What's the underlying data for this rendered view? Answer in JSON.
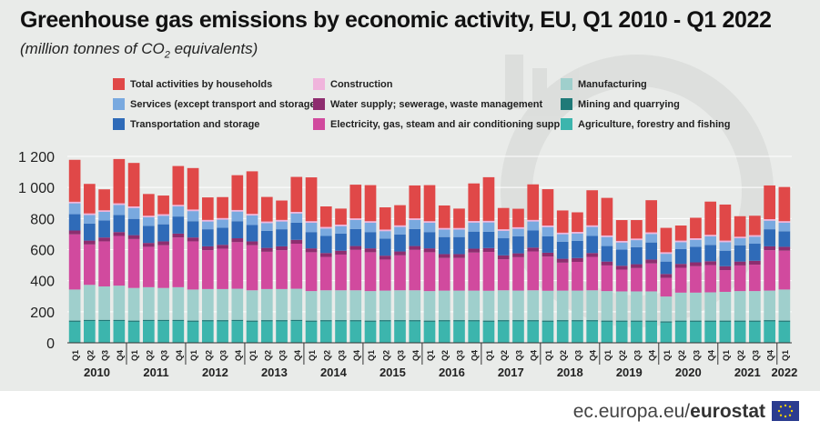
{
  "title": "Greenhouse gas emissions by economic activity, EU, Q1 2010 -  Q1 2022",
  "subtitle_pre": "(million tonnes of CO",
  "subtitle_sub": "2",
  "subtitle_post": " equivalents)",
  "footer": {
    "site": "ec.europa.eu/",
    "brand": "eurostat"
  },
  "chart_data": {
    "type": "bar",
    "stacked": true,
    "ylim": [
      0,
      1200
    ],
    "yticks": [
      "0",
      "200",
      "400",
      "600",
      "800",
      "1 000",
      "1 200"
    ],
    "grid": true,
    "legend_placement": "top",
    "quarter_labels": [
      "Q1",
      "Q2",
      "Q3",
      "Q4"
    ],
    "year_labels": [
      "2010",
      "2011",
      "2012",
      "2013",
      "2014",
      "2015",
      "2016",
      "2017",
      "2018",
      "2019",
      "2020",
      "2021",
      "2022"
    ],
    "series": [
      {
        "name": "Agriculture, forestry and fishing",
        "color": "#3cb5ad",
        "values": [
          135,
          140,
          140,
          140,
          135,
          140,
          140,
          140,
          135,
          138,
          138,
          140,
          135,
          138,
          138,
          140,
          135,
          138,
          138,
          138,
          135,
          138,
          138,
          138,
          135,
          138,
          138,
          138,
          135,
          138,
          138,
          138,
          135,
          138,
          138,
          138,
          135,
          135,
          135,
          135,
          130,
          135,
          135,
          135,
          135,
          135,
          135,
          138,
          135
        ]
      },
      {
        "name": "Mining and quarrying",
        "color": "#1f7a78",
        "values": [
          8,
          8,
          8,
          8,
          8,
          8,
          8,
          8,
          8,
          8,
          8,
          8,
          8,
          8,
          8,
          8,
          8,
          8,
          8,
          8,
          8,
          8,
          8,
          8,
          8,
          8,
          8,
          8,
          8,
          8,
          8,
          8,
          8,
          8,
          8,
          8,
          8,
          8,
          8,
          8,
          8,
          8,
          8,
          8,
          8,
          8,
          8,
          8,
          8
        ]
      },
      {
        "name": "Manufacturing",
        "color": "#9fcfcc",
        "values": [
          200,
          225,
          215,
          220,
          210,
          210,
          205,
          210,
          200,
          200,
          200,
          200,
          195,
          200,
          200,
          200,
          190,
          192,
          192,
          192,
          190,
          190,
          192,
          192,
          190,
          190,
          190,
          190,
          192,
          192,
          190,
          192,
          192,
          190,
          190,
          192,
          190,
          188,
          188,
          188,
          160,
          180,
          180,
          182,
          185,
          190,
          190,
          190,
          200
        ]
      },
      {
        "name": "Electricity, gas, steam and air conditioning supply",
        "color": "#d14a9e",
        "values": [
          355,
          260,
          290,
          320,
          315,
          260,
          275,
          320,
          310,
          250,
          260,
          300,
          290,
          240,
          250,
          290,
          250,
          215,
          230,
          260,
          250,
          200,
          225,
          260,
          250,
          210,
          210,
          245,
          250,
          200,
          215,
          250,
          220,
          180,
          185,
          215,
          165,
          140,
          150,
          180,
          120,
          160,
          170,
          175,
          140,
          165,
          170,
          260,
          250
        ]
      },
      {
        "name": "Water supply; sewerage, waste management",
        "color": "#8e2d6f",
        "values": [
          25,
          25,
          25,
          25,
          25,
          25,
          25,
          25,
          25,
          25,
          25,
          25,
          25,
          25,
          25,
          25,
          25,
          25,
          25,
          25,
          25,
          25,
          25,
          25,
          25,
          25,
          25,
          25,
          25,
          25,
          25,
          25,
          25,
          25,
          25,
          25,
          25,
          25,
          25,
          25,
          25,
          25,
          25,
          25,
          25,
          25,
          25,
          25,
          25
        ]
      },
      {
        "name": "Transportation and storage",
        "color": "#2f6bb8",
        "values": [
          105,
          110,
          110,
          110,
          105,
          110,
          110,
          110,
          105,
          110,
          110,
          110,
          105,
          110,
          110,
          110,
          105,
          110,
          110,
          110,
          105,
          110,
          110,
          110,
          105,
          110,
          110,
          110,
          105,
          110,
          110,
          110,
          105,
          110,
          110,
          110,
          100,
          105,
          110,
          110,
          80,
          95,
          100,
          105,
          100,
          105,
          110,
          110,
          100
        ]
      },
      {
        "name": "Services (except transport and storage)",
        "color": "#79a9df",
        "values": [
          70,
          55,
          55,
          65,
          70,
          55,
          55,
          65,
          65,
          50,
          52,
          62,
          62,
          50,
          50,
          60,
          60,
          48,
          48,
          58,
          60,
          48,
          48,
          58,
          60,
          48,
          48,
          58,
          60,
          48,
          48,
          58,
          60,
          48,
          48,
          58,
          58,
          45,
          45,
          55,
          50,
          45,
          45,
          55,
          55,
          45,
          45,
          55,
          55
        ]
      },
      {
        "name": "Construction",
        "color": "#f0b4dc",
        "values": [
          10,
          10,
          10,
          10,
          10,
          10,
          10,
          10,
          10,
          10,
          10,
          10,
          10,
          10,
          10,
          10,
          10,
          10,
          10,
          10,
          10,
          10,
          10,
          10,
          10,
          10,
          10,
          10,
          10,
          10,
          10,
          10,
          10,
          10,
          10,
          10,
          10,
          10,
          10,
          10,
          10,
          10,
          10,
          10,
          10,
          10,
          10,
          10,
          10
        ]
      },
      {
        "name": "Total activities by households",
        "color": "#e04848",
        "values": [
          270,
          190,
          135,
          285,
          280,
          140,
          120,
          250,
          267,
          145,
          135,
          224,
          274,
          158,
          125,
          225,
          282,
          132,
          103,
          217,
          232,
          143,
          130,
          212,
          232,
          145,
          125,
          242,
          281,
          137,
          119,
          229,
          234,
          143,
          126,
          226,
          242,
          134,
          119,
          207,
          157,
          97,
          132,
          214,
          232,
          132,
          125,
          217,
          220
        ]
      }
    ]
  }
}
